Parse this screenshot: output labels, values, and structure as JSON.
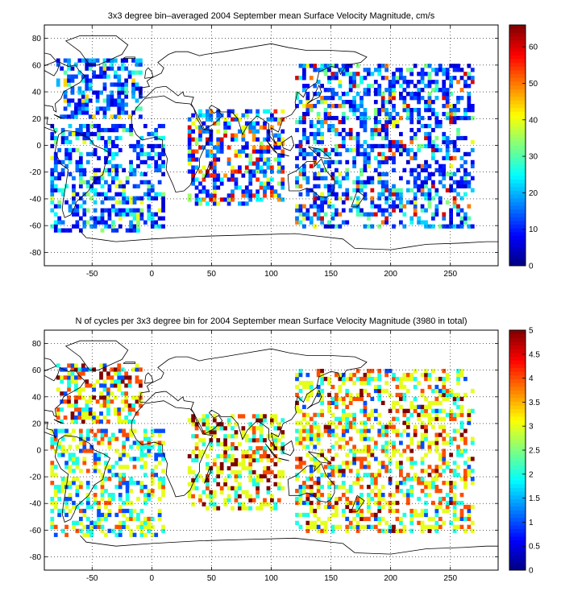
{
  "chart_data": [
    {
      "type": "heatmap",
      "title": "3x3 degree bin–averaged 2004 September mean Surface Velocity Magnitude, cm/s",
      "xlabel": "",
      "ylabel": "",
      "xlim": [
        -90,
        290
      ],
      "ylim": [
        -90,
        90
      ],
      "x_ticks": [
        -50,
        0,
        50,
        100,
        150,
        200,
        250
      ],
      "y_ticks": [
        -80,
        -60,
        -40,
        -20,
        0,
        20,
        40,
        60,
        80
      ],
      "colorbar": {
        "range": [
          0,
          66
        ],
        "ticks": [
          0,
          10,
          20,
          30,
          40,
          50,
          60
        ],
        "colormap": "jet"
      },
      "grid": true,
      "bin_size_deg": 3,
      "ocean_regions": [
        {
          "lon": [
            -80,
            -10
          ],
          "lat": [
            20,
            65
          ],
          "values": [
            8,
            14,
            20,
            9,
            26,
            12,
            6,
            18,
            30,
            11,
            15,
            7,
            22,
            10,
            44,
            5,
            13,
            19
          ]
        },
        {
          "lon": [
            -85,
            10
          ],
          "lat": [
            -65,
            15
          ],
          "values": [
            9,
            18,
            6,
            25,
            12,
            40,
            8,
            15,
            22,
            5,
            11,
            34,
            7,
            16,
            28,
            10
          ]
        },
        {
          "lon": [
            30,
            110
          ],
          "lat": [
            -45,
            25
          ],
          "values": [
            12,
            55,
            8,
            60,
            20,
            14,
            48,
            6,
            25,
            10,
            35,
            18,
            9,
            52,
            16,
            40
          ]
        },
        {
          "lon": [
            120,
            270
          ],
          "lat": [
            -62,
            60
          ],
          "values": [
            10,
            15,
            6,
            22,
            30,
            8,
            50,
            12,
            18,
            60,
            9,
            14,
            26,
            7,
            40,
            11,
            20,
            5,
            33,
            16
          ]
        }
      ]
    },
    {
      "type": "heatmap",
      "title": "N of cycles per 3x3 degree bin for 2004 September mean Surface Velocity Magnitude (3980 in total)",
      "xlabel": "",
      "ylabel": "",
      "xlim": [
        -90,
        290
      ],
      "ylim": [
        -90,
        90
      ],
      "x_ticks": [
        -50,
        0,
        50,
        100,
        150,
        200,
        250
      ],
      "y_ticks": [
        -80,
        -60,
        -40,
        -20,
        0,
        20,
        40,
        60,
        80
      ],
      "colorbar": {
        "range": [
          0,
          5
        ],
        "ticks": [
          0,
          0.5,
          1,
          1.5,
          2,
          2.5,
          3,
          3.5,
          4,
          4.5,
          5
        ],
        "colormap": "jet"
      },
      "grid": true,
      "bin_size_deg": 3,
      "total_cycles": 3980,
      "ocean_regions": [
        {
          "lon": [
            -80,
            -10
          ],
          "lat": [
            20,
            65
          ],
          "values": [
            4,
            3,
            5,
            2,
            3,
            4,
            1,
            3,
            5,
            2,
            4,
            3
          ]
        },
        {
          "lon": [
            -85,
            10
          ],
          "lat": [
            -65,
            15
          ],
          "values": [
            3,
            2,
            1,
            3,
            4,
            2,
            3,
            1,
            2,
            3,
            4,
            2
          ]
        },
        {
          "lon": [
            30,
            110
          ],
          "lat": [
            -45,
            25
          ],
          "values": [
            5,
            5,
            3,
            4,
            3,
            2,
            5,
            3,
            4,
            3,
            2,
            3
          ]
        },
        {
          "lon": [
            120,
            270
          ],
          "lat": [
            -62,
            60
          ],
          "values": [
            3,
            4,
            2,
            3,
            5,
            3,
            2,
            4,
            3,
            1,
            3,
            4,
            2,
            3
          ]
        }
      ]
    }
  ]
}
